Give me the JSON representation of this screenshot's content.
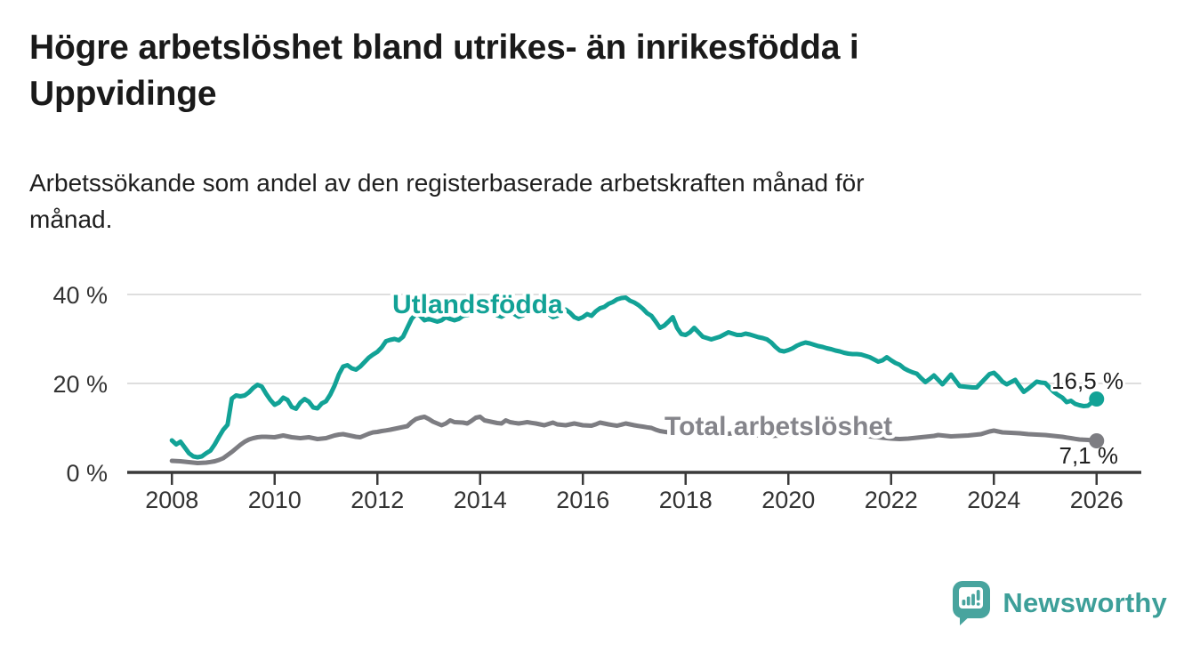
{
  "header": {
    "title": "Högre arbetslöshet bland utrikes- än inrikesfödda i\nUppvidinge",
    "subtitle": "Arbetssökande som andel av den registerbaserade arbetskraften månad för\nmånad."
  },
  "chart_data": {
    "type": "line",
    "title": "Högre arbetslöshet bland utrikes- än inrikesfödda i Uppvidinge",
    "subtitle": "Arbetssökande som andel av den registerbaserade arbetskraften månad för månad.",
    "unit": "%",
    "grid": true,
    "legend": "direct-labels-on-lines",
    "x_axis": {
      "domain_years": [
        2007.13,
        2026.87
      ],
      "ticks": [
        {
          "year": 2008,
          "label": "2008"
        },
        {
          "year": 2010,
          "label": "2010"
        },
        {
          "year": 2012,
          "label": "2012"
        },
        {
          "year": 2014,
          "label": "2014"
        },
        {
          "year": 2016,
          "label": "2016"
        },
        {
          "year": 2018,
          "label": "2018"
        },
        {
          "year": 2020,
          "label": "2020"
        },
        {
          "year": 2022,
          "label": "2022"
        },
        {
          "year": 2024,
          "label": "2024"
        },
        {
          "year": 2026,
          "label": "2026"
        }
      ]
    },
    "y_axis": {
      "domain": [
        0,
        42
      ],
      "ticks": [
        {
          "value": 0,
          "label": "0 %"
        },
        {
          "value": 20,
          "label": "20 %"
        },
        {
          "value": 40,
          "label": "40 %"
        }
      ]
    },
    "series": [
      {
        "name": "Utlandsfödda",
        "color": "#12a296",
        "label_color": "#12a296",
        "end_label": "16,5 %",
        "end_value": 16.5,
        "start_year": 2008,
        "points_per_year": 12,
        "monthly_values": [
          7.2,
          6.3,
          6.9,
          5.6,
          4.3,
          3.6,
          3.4,
          3.6,
          4.3,
          4.9,
          6.3,
          8.0,
          9.6,
          10.7,
          16.6,
          17.3,
          17.1,
          17.3,
          18.0,
          19.0,
          19.7,
          19.3,
          17.7,
          16.3,
          15.2,
          15.7,
          16.8,
          16.3,
          14.7,
          14.3,
          15.7,
          16.5,
          15.9,
          14.6,
          14.4,
          15.5,
          16.0,
          17.5,
          19.5,
          22.0,
          23.8,
          24.1,
          23.4,
          23.1,
          23.8,
          24.8,
          25.8,
          26.5,
          27.1,
          28.1,
          29.5,
          29.8,
          30.0,
          29.7,
          30.5,
          32.5,
          34.5,
          35.6,
          35.2,
          34.2,
          34.5,
          34.2,
          33.9,
          34.2,
          34.9,
          34.5,
          34.2,
          34.5,
          35.2,
          35.4,
          35.6,
          35.9,
          36.2,
          37.0,
          37.4,
          36.4,
          35.3,
          35.0,
          35.6,
          36.3,
          35.6,
          35.0,
          35.3,
          36.0,
          36.4,
          37.0,
          37.4,
          36.6,
          35.6,
          34.9,
          35.2,
          36.2,
          36.6,
          35.9,
          34.9,
          34.5,
          34.9,
          35.6,
          35.2,
          36.2,
          36.9,
          37.2,
          37.9,
          38.3,
          38.9,
          39.2,
          39.3,
          38.6,
          38.2,
          37.6,
          36.8,
          35.8,
          35.2,
          33.9,
          32.5,
          33.0,
          33.9,
          34.9,
          32.5,
          31.1,
          30.9,
          31.5,
          32.5,
          31.5,
          30.5,
          30.2,
          29.9,
          30.2,
          30.5,
          31.0,
          31.5,
          31.2,
          30.9,
          30.9,
          31.2,
          31.0,
          30.7,
          30.4,
          30.2,
          29.9,
          29.2,
          28.2,
          27.4,
          27.2,
          27.5,
          27.9,
          28.5,
          28.9,
          29.2,
          29.0,
          28.7,
          28.4,
          28.2,
          27.9,
          27.7,
          27.4,
          27.2,
          26.9,
          26.7,
          26.6,
          26.6,
          26.5,
          26.2,
          25.9,
          25.4,
          24.9,
          25.2,
          25.9,
          25.2,
          24.6,
          24.2,
          23.4,
          22.9,
          22.5,
          22.2,
          21.2,
          20.3,
          21.0,
          21.8,
          20.8,
          19.8,
          20.9,
          22.0,
          20.7,
          19.4,
          19.3,
          19.2,
          19.1,
          19.1,
          20.1,
          21.1,
          22.1,
          22.4,
          21.5,
          20.4,
          19.8,
          20.3,
          20.8,
          19.4,
          18.1,
          18.8,
          19.6,
          20.4,
          20.2,
          20.1,
          19.1,
          18.1,
          17.4,
          16.8,
          15.8,
          16.1,
          15.4,
          15.1,
          14.9,
          15.0,
          15.8,
          16.5
        ]
      },
      {
        "name": "Total arbetslöshet",
        "color": "#7d7d82",
        "label_color": "#85858b",
        "end_label": "7,1 %",
        "end_value": 7.1,
        "start_year": 2008,
        "points_per_year": 12,
        "monthly_values": [
          2.6,
          2.55,
          2.5,
          2.4,
          2.3,
          2.2,
          2.1,
          2.15,
          2.2,
          2.35,
          2.5,
          2.8,
          3.2,
          3.9,
          4.6,
          5.4,
          6.2,
          6.9,
          7.4,
          7.7,
          7.9,
          8.0,
          8.0,
          7.95,
          7.9,
          8.1,
          8.3,
          8.1,
          7.9,
          7.8,
          7.7,
          7.8,
          7.9,
          7.7,
          7.5,
          7.6,
          7.7,
          8.0,
          8.3,
          8.5,
          8.6,
          8.4,
          8.2,
          8.0,
          7.9,
          8.3,
          8.7,
          9.0,
          9.1,
          9.3,
          9.45,
          9.6,
          9.8,
          10.0,
          10.2,
          10.4,
          11.3,
          12.0,
          12.3,
          12.5,
          12.0,
          11.4,
          11.0,
          10.6,
          11.0,
          11.7,
          11.3,
          11.25,
          11.2,
          11.0,
          11.6,
          12.3,
          12.5,
          11.7,
          11.5,
          11.3,
          11.1,
          11.0,
          11.7,
          11.3,
          11.15,
          11.0,
          11.15,
          11.3,
          11.15,
          11.0,
          10.8,
          10.6,
          10.9,
          11.2,
          10.8,
          10.7,
          10.6,
          10.8,
          11.0,
          10.8,
          10.6,
          10.55,
          10.5,
          10.8,
          11.2,
          11.0,
          10.8,
          10.65,
          10.5,
          10.75,
          11.0,
          10.8,
          10.6,
          10.45,
          10.3,
          10.15,
          10.0,
          9.6,
          9.3,
          9.15,
          9.0,
          9.2,
          9.4,
          9.5,
          9.6,
          9.4,
          9.2,
          9.05,
          8.9,
          8.8,
          8.7,
          8.6,
          8.5,
          8.6,
          8.7,
          8.8,
          8.9,
          8.75,
          8.6,
          8.5,
          8.4,
          8.35,
          8.3,
          8.25,
          8.2,
          8.25,
          8.3,
          8.4,
          8.5,
          8.65,
          8.8,
          9.0,
          9.2,
          9.3,
          9.4,
          9.3,
          9.2,
          9.1,
          9.0,
          8.9,
          8.8,
          8.7,
          8.6,
          8.5,
          8.4,
          8.3,
          8.2,
          8.1,
          8.0,
          7.9,
          7.8,
          7.7,
          7.6,
          7.55,
          7.5,
          7.55,
          7.6,
          7.7,
          7.8,
          7.9,
          8.0,
          8.1,
          8.2,
          8.4,
          8.3,
          8.2,
          8.1,
          8.15,
          8.2,
          8.25,
          8.3,
          8.4,
          8.5,
          8.6,
          8.9,
          9.2,
          9.4,
          9.2,
          9.0,
          8.95,
          8.9,
          8.85,
          8.8,
          8.7,
          8.6,
          8.55,
          8.5,
          8.45,
          8.4,
          8.3,
          8.2,
          8.1,
          8.0,
          7.85,
          7.7,
          7.55,
          7.4,
          7.35,
          7.3,
          7.2,
          7.1
        ]
      }
    ],
    "colors": {
      "grid": "#dedede",
      "axis": "#3a3a3a",
      "tick_text": "#333333",
      "end_label_text": "#1f1f1f"
    }
  },
  "branding": {
    "logo_text": "Newsworthy",
    "logo_color": "#48a49e",
    "logo_text_color": "#3d9f99",
    "logo_icon": "bar-chart-speech-bubble-icon"
  }
}
